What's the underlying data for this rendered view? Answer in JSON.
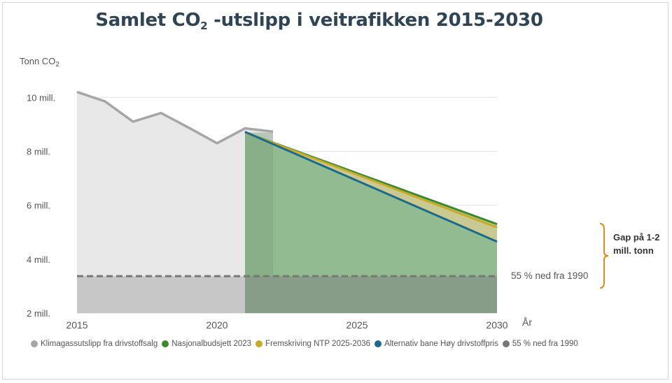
{
  "chart_data": {
    "type": "area",
    "title": "Samlet CO",
    "title_sub": "2",
    "title_rest": " -utslipp i veitrafikken 2015-2030",
    "ylabel": "Tonn CO",
    "ylabel_sub": "2",
    "xlabel": "År",
    "xlim": [
      2015,
      2030
    ],
    "ylim": [
      2,
      10.5
    ],
    "x_ticks": [
      2015,
      2020,
      2025,
      2030
    ],
    "y_ticks": [
      {
        "value": 2,
        "label": "2 mill."
      },
      {
        "value": 4,
        "label": "4 mill."
      },
      {
        "value": 6,
        "label": "6 mill."
      },
      {
        "value": 8,
        "label": "8 mill."
      },
      {
        "value": 10,
        "label": "10 mill."
      }
    ],
    "grid": "horizontal",
    "series": [
      {
        "name": "Klimagassutslipp fra drivstoffsalg",
        "color": "#a6a6a6",
        "x": [
          2015,
          2016,
          2017,
          2018,
          2019,
          2020,
          2021,
          2022
        ],
        "y": [
          10.2,
          9.85,
          9.1,
          9.42,
          8.87,
          8.3,
          8.85,
          8.73
        ]
      },
      {
        "name": "Nasjonalbudsjett 2023",
        "color": "#3a8a2a",
        "x": [
          2021,
          2030
        ],
        "y": [
          8.7,
          5.3
        ]
      },
      {
        "name": "Fremskriving NTP 2025-2036",
        "color": "#c8a92a",
        "x": [
          2021,
          2030
        ],
        "y": [
          8.7,
          5.18
        ]
      },
      {
        "name": "Alternativ bane Høy drivstoffpris",
        "color": "#1a6a8a",
        "x": [
          2021,
          2030
        ],
        "y": [
          8.72,
          4.65
        ]
      },
      {
        "name": "55 % ned fra 1990",
        "color": "#777777",
        "x": [
          2015,
          2030
        ],
        "y": [
          3.37,
          3.37
        ]
      }
    ],
    "annotations": {
      "target_label": "55 % ned fra 1990",
      "gap_label": "Gap på 1-2 mill. tonn"
    }
  }
}
